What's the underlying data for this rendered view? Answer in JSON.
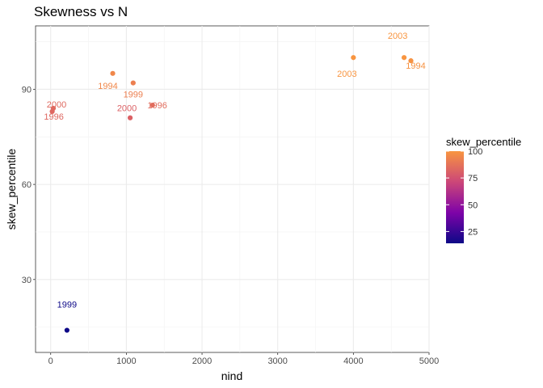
{
  "chart_data": {
    "type": "scatter",
    "title": "Skewness vs N",
    "xlabel": "nind",
    "ylabel": "skew_percentile",
    "xlim": [
      -200,
      5000
    ],
    "ylim": [
      7,
      110
    ],
    "xticks": [
      0,
      1000,
      2000,
      3000,
      4000,
      5000
    ],
    "yticks": [
      30,
      60,
      90
    ],
    "grid": true,
    "points": [
      {
        "x": 215,
        "y": 14,
        "label": "1999"
      },
      {
        "x": 820,
        "y": 95,
        "label": "1994"
      },
      {
        "x": 1090,
        "y": 92,
        "label": "1999"
      },
      {
        "x": 1345,
        "y": 85,
        "label": "1996"
      },
      {
        "x": 1050,
        "y": 81,
        "label": "2000"
      },
      {
        "x": 35,
        "y": 84,
        "label": "2000"
      },
      {
        "x": 20,
        "y": 83,
        "label": "1996"
      },
      {
        "x": 4000,
        "y": 100,
        "label": "2003"
      },
      {
        "x": 4670,
        "y": 100,
        "label": "2003"
      },
      {
        "x": 4760,
        "y": 99,
        "label": "1994"
      }
    ],
    "color_scale": {
      "variable": "skew_percentile",
      "name": "plasma",
      "breaks": [
        25,
        50,
        75,
        100
      ],
      "range": [
        14,
        100
      ],
      "stops": [
        "#0d0887",
        "#7e03a8",
        "#cc4778",
        "#f89540"
      ]
    },
    "legend": {
      "title": "skew_percentile",
      "position": "right"
    }
  }
}
